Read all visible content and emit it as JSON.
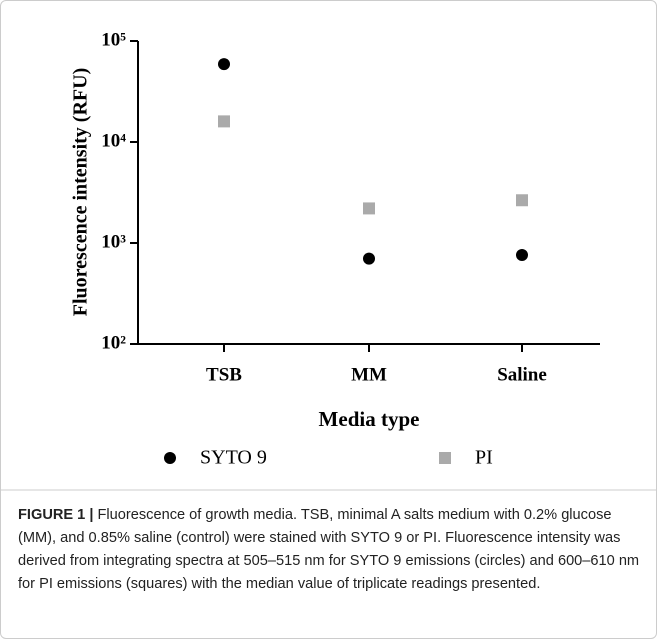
{
  "chart_data": {
    "type": "scatter",
    "log_y": true,
    "y_label": "Fluorescence intensity (RFU)",
    "x_label": "Media type",
    "categories": [
      "TSB",
      "MM",
      "Saline"
    ],
    "series": [
      {
        "name": "SYTO 9",
        "color": "#000000",
        "marker": "circle",
        "values": [
          59000,
          700,
          760
        ]
      },
      {
        "name": "PI",
        "color": "#aaaaaa",
        "marker": "square",
        "values": [
          16000,
          2200,
          2650
        ]
      }
    ],
    "ylim": [
      100,
      100000
    ],
    "yticks": [
      {
        "value": 100,
        "label": "10²"
      },
      {
        "value": 1000,
        "label": "10³"
      },
      {
        "value": 10000,
        "label": "10⁴"
      },
      {
        "value": 100000,
        "label": "10⁵"
      }
    ],
    "caption_label": "FIGURE 1 |",
    "caption": "Fluorescence of growth media. TSB, minimal A salts medium with 0.2% glucose (MM), and 0.85% saline (control) were stained with SYTO 9 or PI. Fluorescence intensity was derived from integrating spectra at 505–515 nm for SYTO 9 emissions (circles) and 600–610 nm for PI emissions (squares) with the median value of triplicate readings presented."
  }
}
